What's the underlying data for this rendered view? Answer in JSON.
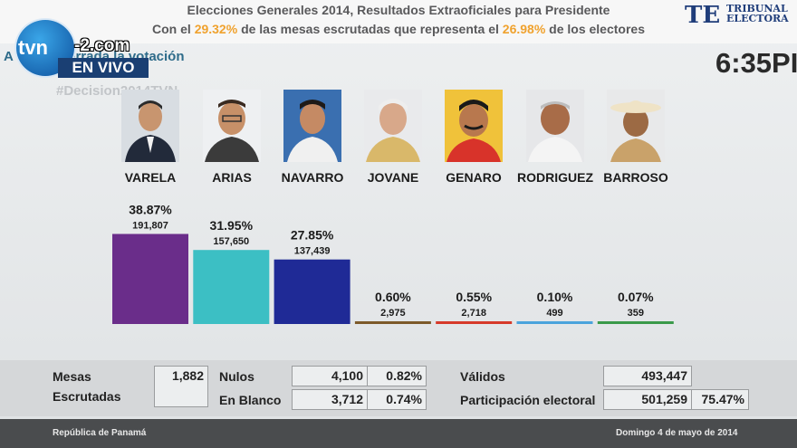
{
  "header": {
    "title": "Elecciones Generales 2014, Resultados Extraoficiales para Presidente",
    "line2_pre": "Con el",
    "line2_mesas_pct": "29.32%",
    "line2_mid": "de las mesas escrutadas que representa el",
    "line2_electores_pct": "26.98%",
    "line2_post": "de los electores",
    "logo_mark": "TE",
    "logo_text_1": "TRIBUNAL",
    "logo_text_2": "ELECTORA"
  },
  "subtitle": "A                 tos de cerrada la votación",
  "clock": "6:35PI",
  "overlay": {
    "channel": "tvn",
    "channel_suffix": "-2.com",
    "live_label": "EN VIVO",
    "hashtag": "#Decision2014TVN"
  },
  "colors": {
    "varela": "#6a2d8a",
    "arias": "#3cbfc4",
    "navarro": "#1f2a96",
    "jovane": "#7d5a2a",
    "genaro": "#d63a2a",
    "rodriguez": "#4aa3dc",
    "barroso": "#3a9a4a",
    "highlight": "#f0a22e"
  },
  "chart_data": {
    "type": "bar",
    "categories": [
      "VARELA",
      "ARIAS",
      "NAVARRO",
      "JOVANE",
      "GENARO",
      "RODRIGUEZ",
      "BARROSO"
    ],
    "series": [
      {
        "values": [
          38.87,
          31.95,
          27.85,
          0.6,
          0.55,
          0.1,
          0.07
        ]
      }
    ],
    "percent_labels": [
      "38.87%",
      "31.95%",
      "27.85%",
      "0.60%",
      "0.55%",
      "0.10%",
      "0.07%"
    ],
    "vote_labels": [
      "191,807",
      "157,650",
      "137,439",
      "2,975",
      "2,718",
      "499",
      "359"
    ],
    "votes": [
      191807,
      157650,
      137439,
      2975,
      2718,
      499,
      359
    ],
    "ylim": [
      0,
      40
    ]
  },
  "summary": {
    "mesas_label_1": "Mesas",
    "mesas_label_2": "Escrutadas",
    "mesas_value": "1,882",
    "nulos_label": "Nulos",
    "nulos_value": "4,100",
    "nulos_pct": "0.82%",
    "blanco_label": "En Blanco",
    "blanco_value": "3,712",
    "blanco_pct": "0.74%",
    "validos_label": "Válidos",
    "validos_value": "493,447",
    "participacion_label": "Participación electoral",
    "participacion_value": "501,259",
    "participacion_pct": "75.47%"
  },
  "footer": {
    "left": "República de Panamá",
    "right": "Domingo 4 de mayo de 2014"
  }
}
